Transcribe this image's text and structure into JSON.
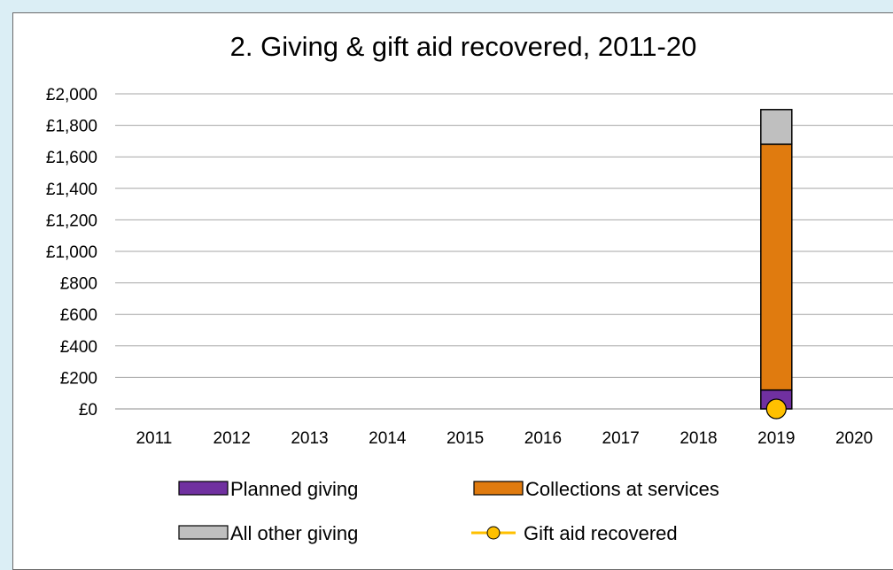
{
  "chart_data": {
    "type": "bar",
    "stacked": true,
    "title": "2. Giving & gift aid recovered, 2011-20",
    "xlabel": "",
    "ylabel": "",
    "ylim": [
      0,
      2000
    ],
    "yticks": [
      0,
      200,
      400,
      600,
      800,
      1000,
      1200,
      1400,
      1600,
      1800,
      2000
    ],
    "ytick_labels": [
      "£0",
      "£200",
      "£400",
      "£600",
      "£800",
      "£1,000",
      "£1,200",
      "£1,400",
      "£1,600",
      "£1,800",
      "£2,000"
    ],
    "grid": true,
    "legend_position": "bottom",
    "categories": [
      "2011",
      "2012",
      "2013",
      "2014",
      "2015",
      "2016",
      "2017",
      "2018",
      "2019",
      "2020"
    ],
    "series": [
      {
        "name": "Planned giving",
        "type": "bar",
        "color": "#7030a0",
        "values": [
          null,
          null,
          null,
          null,
          null,
          null,
          null,
          null,
          120,
          null
        ]
      },
      {
        "name": "Collections at services",
        "type": "bar",
        "color": "#e07b0f",
        "values": [
          null,
          null,
          null,
          null,
          null,
          null,
          null,
          null,
          1560,
          null
        ]
      },
      {
        "name": "All other giving",
        "type": "bar",
        "color": "#bfbfbf",
        "values": [
          null,
          null,
          null,
          null,
          null,
          null,
          null,
          null,
          220,
          null
        ]
      },
      {
        "name": "Gift aid recovered",
        "type": "line",
        "color": "#ffc000",
        "values": [
          null,
          null,
          null,
          null,
          null,
          null,
          null,
          null,
          0,
          null
        ]
      }
    ]
  }
}
